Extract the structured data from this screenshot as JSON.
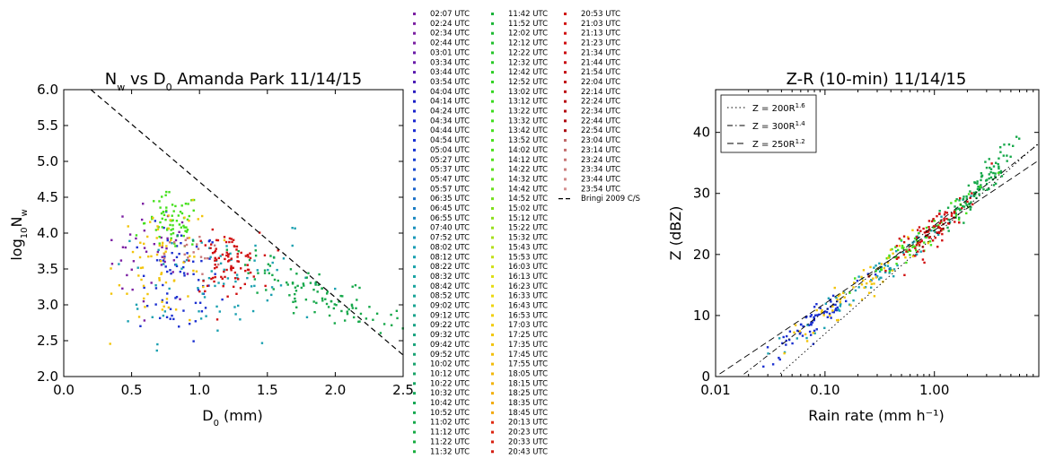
{
  "chart_data": [
    {
      "type": "scatter",
      "title": "N_w vs D_0 Amanda Park 11/14/15",
      "title_parts": {
        "a": "N",
        "a_sub": "w",
        "b": " vs D",
        "b_sub": "0",
        "c": " Amanda Park 11/14/15"
      },
      "xlabel": "D0 (mm)",
      "xlabel_parts": {
        "a": "D",
        "sub": "0",
        "b": " (mm)"
      },
      "ylabel": "log10Nw",
      "ylabel_parts": {
        "a": "log",
        "sub1": "10",
        "b": "N",
        "sub2": "w"
      },
      "xlim": [
        0.0,
        2.5
      ],
      "ylim": [
        2.0,
        6.0
      ],
      "xticks": [
        "0.0",
        "0.5",
        "1.0",
        "1.5",
        "2.0",
        "2.5"
      ],
      "yticks": [
        "2.0",
        "2.5",
        "3.0",
        "3.5",
        "4.0",
        "4.5",
        "5.0",
        "5.5",
        "6.0"
      ],
      "reference_line": {
        "name": "Bringi 2009 C/S",
        "x": [
          0.2,
          2.5
        ],
        "y": [
          6.0,
          2.3
        ]
      },
      "clusters": [
        {
          "period": "02:07-03:54 UTC",
          "color": "#7b1fa2",
          "cx": 0.65,
          "cy": 3.7,
          "sx": 0.18,
          "sy": 0.35,
          "n": 40
        },
        {
          "period": "04:04-05:57 UTC",
          "color": "#1a2fd0",
          "cx": 0.85,
          "cy": 3.3,
          "sx": 0.15,
          "sy": 0.4,
          "n": 70
        },
        {
          "period": "06:35-10:12 UTC",
          "color": "#1aa0b0",
          "cx": 1.1,
          "cy": 3.4,
          "sx": 0.4,
          "sy": 0.45,
          "n": 80
        },
        {
          "period": "10:22-12:52 UTC",
          "color": "#16a84a",
          "cx": 1.85,
          "cy": 3.0,
          "sx": 0.35,
          "sy": 0.3,
          "n": 110
        },
        {
          "period": "13:02-15:53 UTC",
          "color": "#44e01c",
          "cx": 0.8,
          "cy": 4.15,
          "sx": 0.1,
          "sy": 0.2,
          "n": 70
        },
        {
          "period": "16:03-18:45 UTC",
          "color": "#f2c40a",
          "cx": 0.75,
          "cy": 3.6,
          "sx": 0.18,
          "sy": 0.45,
          "n": 70
        },
        {
          "period": "20:13-22:54 UTC",
          "color": "#d01010",
          "cx": 1.2,
          "cy": 3.6,
          "sx": 0.12,
          "sy": 0.2,
          "n": 90
        },
        {
          "period": "23:04-23:54 UTC",
          "color": "#c87878",
          "cx": 0.95,
          "cy": 3.7,
          "sx": 0.1,
          "sy": 0.15,
          "n": 20
        }
      ]
    },
    {
      "type": "scatter",
      "title": "Z-R (10-min) 11/14/15",
      "xlabel": "Rain rate (mm h⁻¹)",
      "ylabel": "Z (dBZ)",
      "xscale": "log",
      "xlim": [
        0.01,
        9.0
      ],
      "ylim": [
        0,
        47
      ],
      "xticks": [
        "0.01",
        "0.10",
        "1.00"
      ],
      "yticks": [
        "0",
        "10",
        "20",
        "30",
        "40"
      ],
      "legend_position": "top-left",
      "relations": [
        {
          "label_a": "Z = 200R",
          "exp": "1.6",
          "a": 200,
          "b": 1.6,
          "style": "dotted"
        },
        {
          "label_a": "Z = 300R",
          "exp": "1.4",
          "a": 300,
          "b": 1.4,
          "style": "dashdot"
        },
        {
          "label_a": "Z = 250R",
          "exp": "1.2",
          "a": 250,
          "b": 1.2,
          "style": "dashed"
        }
      ],
      "clusters": [
        {
          "period": "04:04-05:57 UTC",
          "color": "#1a2fd0",
          "lx": -1.05,
          "sx": 0.3,
          "n": 70
        },
        {
          "period": "06:35-10:12 UTC",
          "color": "#1aa0b0",
          "lx": -0.5,
          "sx": 0.35,
          "n": 70
        },
        {
          "period": "10:22-12:52 UTC",
          "color": "#16a84a",
          "lx": 0.35,
          "sx": 0.18,
          "n": 110
        },
        {
          "period": "13:02-15:53 UTC",
          "color": "#44e01c",
          "lx": -0.1,
          "sx": 0.3,
          "n": 60
        },
        {
          "period": "16:03-18:45 UTC",
          "color": "#f2c40a",
          "lx": -0.7,
          "sx": 0.3,
          "n": 60
        },
        {
          "period": "20:13-22:54 UTC",
          "color": "#d01010",
          "lx": 0.0,
          "sx": 0.2,
          "n": 90
        }
      ]
    }
  ],
  "legend": {
    "entries": [
      {
        "label": "02:07 UTC",
        "color": "#7b1fa2"
      },
      {
        "label": "02:24 UTC",
        "color": "#7b1fa2"
      },
      {
        "label": "02:34 UTC",
        "color": "#7b1fa2"
      },
      {
        "label": "02:44 UTC",
        "color": "#7b1fa2"
      },
      {
        "label": "03:01 UTC",
        "color": "#6a1ba8"
      },
      {
        "label": "03:34 UTC",
        "color": "#6a1ba8"
      },
      {
        "label": "03:44 UTC",
        "color": "#5a1aae"
      },
      {
        "label": "03:54 UTC",
        "color": "#4a1ab4"
      },
      {
        "label": "04:04 UTC",
        "color": "#2a1cbe"
      },
      {
        "label": "04:14 UTC",
        "color": "#1a1ec6"
      },
      {
        "label": "04:24 UTC",
        "color": "#1a22cc"
      },
      {
        "label": "04:34 UTC",
        "color": "#1a26d0"
      },
      {
        "label": "04:44 UTC",
        "color": "#1a2ad2"
      },
      {
        "label": "04:54 UTC",
        "color": "#1a30d4"
      },
      {
        "label": "05:04 UTC",
        "color": "#1a36d4"
      },
      {
        "label": "05:27 UTC",
        "color": "#1a40d4"
      },
      {
        "label": "05:37 UTC",
        "color": "#1a4ad2"
      },
      {
        "label": "05:47 UTC",
        "color": "#1a56d0"
      },
      {
        "label": "05:57 UTC",
        "color": "#1a62cc"
      },
      {
        "label": "06:35 UTC",
        "color": "#1a70c8"
      },
      {
        "label": "06:45 UTC",
        "color": "#1a7cc4"
      },
      {
        "label": "06:55 UTC",
        "color": "#1a88c0"
      },
      {
        "label": "07:40 UTC",
        "color": "#1a90bc"
      },
      {
        "label": "07:52 UTC",
        "color": "#1a98b8"
      },
      {
        "label": "08:02 UTC",
        "color": "#1a9cb4"
      },
      {
        "label": "08:12 UTC",
        "color": "#1aa0b0"
      },
      {
        "label": "08:22 UTC",
        "color": "#1aa2aa"
      },
      {
        "label": "08:32 UTC",
        "color": "#1aa4a4"
      },
      {
        "label": "08:42 UTC",
        "color": "#1aa49e"
      },
      {
        "label": "08:52 UTC",
        "color": "#1aa498"
      },
      {
        "label": "09:02 UTC",
        "color": "#1aa492"
      },
      {
        "label": "09:12 UTC",
        "color": "#1aa48c"
      },
      {
        "label": "09:22 UTC",
        "color": "#1aa486"
      },
      {
        "label": "09:32 UTC",
        "color": "#1aa480"
      },
      {
        "label": "09:42 UTC",
        "color": "#1aa47a"
      },
      {
        "label": "09:52 UTC",
        "color": "#1aa474"
      },
      {
        "label": "10:02 UTC",
        "color": "#1aa46e"
      },
      {
        "label": "10:12 UTC",
        "color": "#1aa468"
      },
      {
        "label": "10:22 UTC",
        "color": "#18a662"
      },
      {
        "label": "10:32 UTC",
        "color": "#18a85c"
      },
      {
        "label": "10:42 UTC",
        "color": "#18a856"
      },
      {
        "label": "10:52 UTC",
        "color": "#16a850"
      },
      {
        "label": "11:02 UTC",
        "color": "#16a84a"
      },
      {
        "label": "11:12 UTC",
        "color": "#16aa44"
      },
      {
        "label": "11:22 UTC",
        "color": "#16ac40"
      },
      {
        "label": "11:32 UTC",
        "color": "#16ae3c"
      },
      {
        "label": "11:42 UTC",
        "color": "#18b238"
      },
      {
        "label": "11:52 UTC",
        "color": "#1ab634"
      },
      {
        "label": "12:02 UTC",
        "color": "#1cba30"
      },
      {
        "label": "12:12 UTC",
        "color": "#20c02c"
      },
      {
        "label": "12:22 UTC",
        "color": "#24c628"
      },
      {
        "label": "12:32 UTC",
        "color": "#28ca26"
      },
      {
        "label": "12:42 UTC",
        "color": "#2cce24"
      },
      {
        "label": "12:52 UTC",
        "color": "#30d222"
      },
      {
        "label": "13:02 UTC",
        "color": "#34d620"
      },
      {
        "label": "13:12 UTC",
        "color": "#38da1e"
      },
      {
        "label": "13:22 UTC",
        "color": "#3cdc1c"
      },
      {
        "label": "13:32 UTC",
        "color": "#40de1c"
      },
      {
        "label": "13:42 UTC",
        "color": "#44e01c"
      },
      {
        "label": "13:52 UTC",
        "color": "#48e01c"
      },
      {
        "label": "14:02 UTC",
        "color": "#4ce01c"
      },
      {
        "label": "14:12 UTC",
        "color": "#52e01c"
      },
      {
        "label": "14:22 UTC",
        "color": "#5ae01c"
      },
      {
        "label": "14:32 UTC",
        "color": "#62e01c"
      },
      {
        "label": "14:42 UTC",
        "color": "#6ae01c"
      },
      {
        "label": "14:52 UTC",
        "color": "#74e01c"
      },
      {
        "label": "15:02 UTC",
        "color": "#80e01c"
      },
      {
        "label": "15:12 UTC",
        "color": "#8ce01c"
      },
      {
        "label": "15:22 UTC",
        "color": "#98e01c"
      },
      {
        "label": "15:32 UTC",
        "color": "#a6e01c"
      },
      {
        "label": "15:43 UTC",
        "color": "#b4e01a"
      },
      {
        "label": "15:53 UTC",
        "color": "#c2e018"
      },
      {
        "label": "16:03 UTC",
        "color": "#d0e016"
      },
      {
        "label": "16:13 UTC",
        "color": "#dcde14"
      },
      {
        "label": "16:23 UTC",
        "color": "#e6dc12"
      },
      {
        "label": "16:33 UTC",
        "color": "#ecd810"
      },
      {
        "label": "16:43 UTC",
        "color": "#eed40e"
      },
      {
        "label": "16:53 UTC",
        "color": "#f0d00c"
      },
      {
        "label": "17:03 UTC",
        "color": "#f2cc0a"
      },
      {
        "label": "17:25 UTC",
        "color": "#f2c80a"
      },
      {
        "label": "17:35 UTC",
        "color": "#f2c40a"
      },
      {
        "label": "17:45 UTC",
        "color": "#f2c00a"
      },
      {
        "label": "17:55 UTC",
        "color": "#f2bc0a"
      },
      {
        "label": "18:05 UTC",
        "color": "#f2b80a"
      },
      {
        "label": "18:15 UTC",
        "color": "#f2b40a"
      },
      {
        "label": "18:25 UTC",
        "color": "#f2b00a"
      },
      {
        "label": "18:35 UTC",
        "color": "#f2ac0a"
      },
      {
        "label": "18:45 UTC",
        "color": "#f2a80a"
      },
      {
        "label": "20:13 UTC",
        "color": "#e02a10"
      },
      {
        "label": "20:23 UTC",
        "color": "#dc2410"
      },
      {
        "label": "20:33 UTC",
        "color": "#d82010"
      },
      {
        "label": "20:43 UTC",
        "color": "#d41c10"
      },
      {
        "label": "20:53 UTC",
        "color": "#d01810"
      },
      {
        "label": "21:03 UTC",
        "color": "#d01410"
      },
      {
        "label": "21:13 UTC",
        "color": "#d01010"
      },
      {
        "label": "21:23 UTC",
        "color": "#d00e10"
      },
      {
        "label": "21:34 UTC",
        "color": "#cc0c10"
      },
      {
        "label": "21:44 UTC",
        "color": "#c80a10"
      },
      {
        "label": "21:54 UTC",
        "color": "#c40a10"
      },
      {
        "label": "22:04 UTC",
        "color": "#c00a10"
      },
      {
        "label": "22:14 UTC",
        "color": "#bc0a10"
      },
      {
        "label": "22:24 UTC",
        "color": "#b80a10"
      },
      {
        "label": "22:34 UTC",
        "color": "#b40a10"
      },
      {
        "label": "22:44 UTC",
        "color": "#b00a10"
      },
      {
        "label": "22:54 UTC",
        "color": "#ac0a10"
      },
      {
        "label": "23:04 UTC",
        "color": "#c06868"
      },
      {
        "label": "23:14 UTC",
        "color": "#c47070"
      },
      {
        "label": "23:24 UTC",
        "color": "#c87878"
      },
      {
        "label": "23:34 UTC",
        "color": "#cc8080"
      },
      {
        "label": "23:44 UTC",
        "color": "#d08888"
      },
      {
        "label": "23:54 UTC",
        "color": "#d49090"
      }
    ],
    "line_entry": {
      "label": "Bringi 2009 C/S",
      "style": "dashed",
      "color": "#000000"
    }
  }
}
